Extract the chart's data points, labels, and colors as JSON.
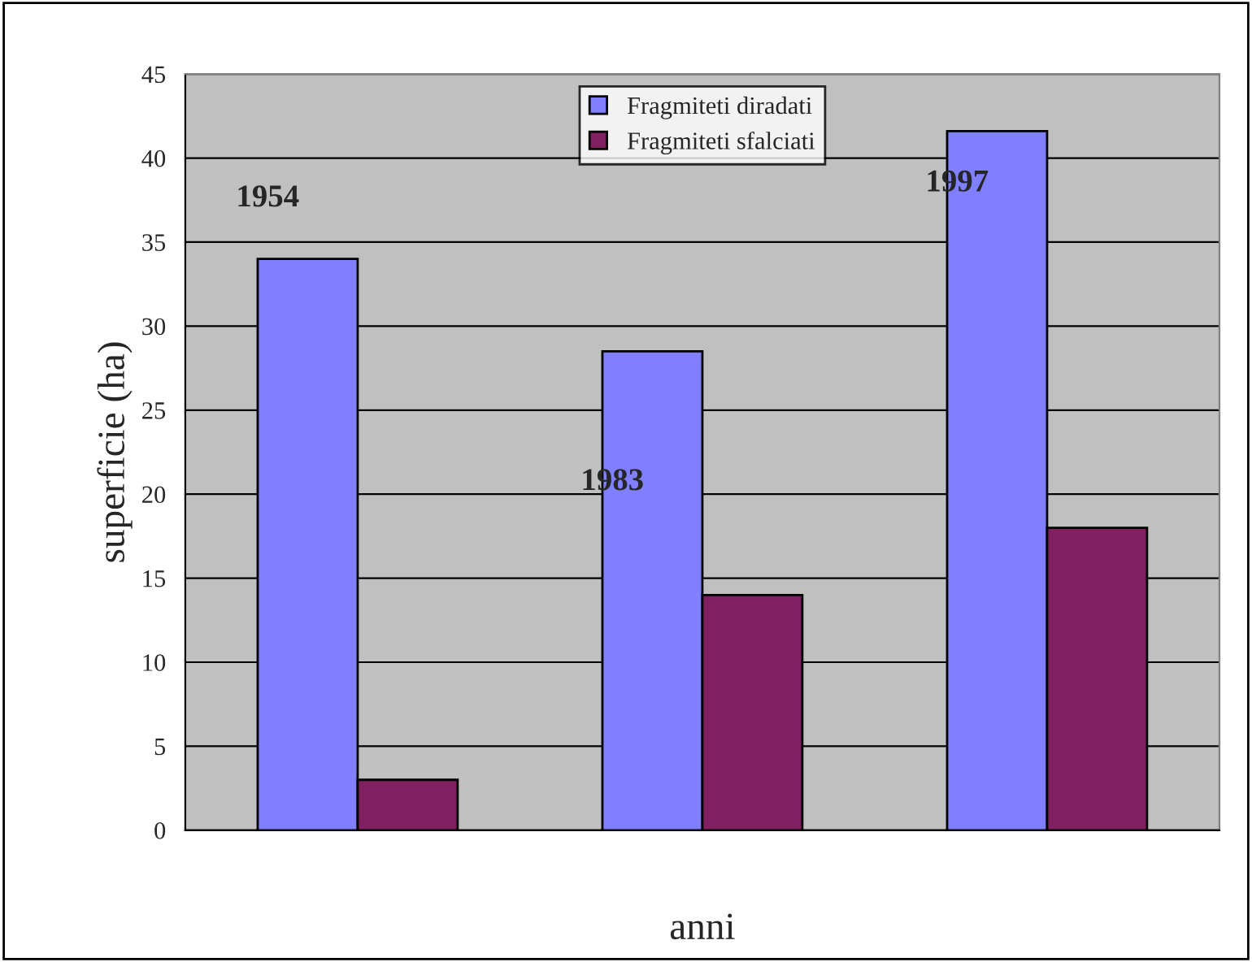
{
  "chart_data": {
    "type": "bar",
    "ylabel": "superficie (ha)",
    "xlabel": "anni",
    "categories": [
      null,
      null,
      null
    ],
    "series": [
      {
        "name": "Fragmiteti diradati",
        "color": "#8080ff",
        "values": [
          34,
          28.5,
          41.6
        ]
      },
      {
        "name": "Fragmiteti sfalciati",
        "color": "#802060",
        "values": [
          3,
          14,
          18
        ]
      }
    ],
    "ylim": [
      0,
      45
    ],
    "yticks": [
      0,
      5,
      10,
      15,
      20,
      25,
      30,
      35,
      40,
      45
    ],
    "grid": "y",
    "legend": "top",
    "annotations": [
      "1954",
      "1983",
      "1997"
    ]
  }
}
